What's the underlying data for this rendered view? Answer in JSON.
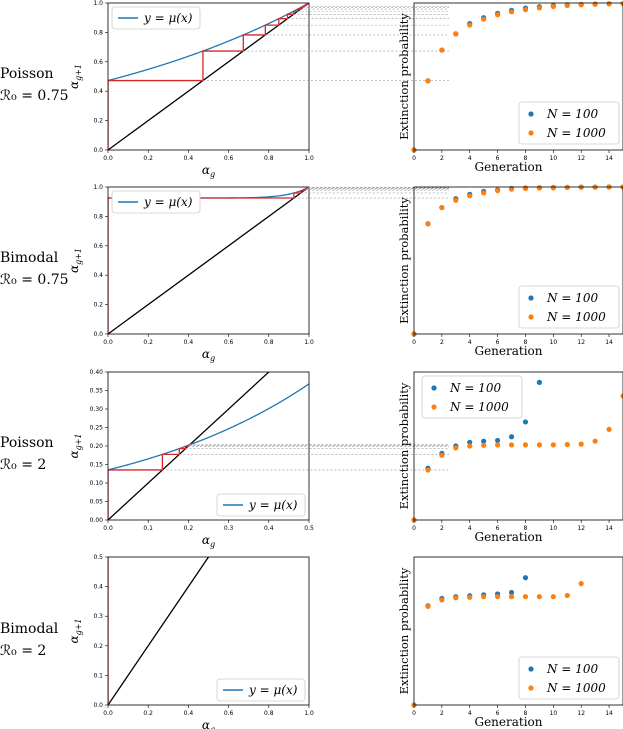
{
  "rows": [
    {
      "label1": "Poisson",
      "label2": "ℛ₀ = 0.75",
      "cobweb": {
        "xlabel": "α_g",
        "ylabel": "α_{g+1}",
        "xlim": [
          0,
          1
        ],
        "ylim": [
          0,
          1
        ],
        "xticks": [
          "0.0",
          "0.2",
          "0.4",
          "0.6",
          "0.8",
          "1.0"
        ],
        "yticks": [
          "0.0",
          "0.2",
          "0.4",
          "0.6",
          "0.8",
          "1.0"
        ],
        "legend": "y = μ(x)",
        "legend_pos": "top-left",
        "map": "poisson",
        "R0": 0.75
      },
      "ext": {
        "xlabel": "Generation",
        "ylabel": "Extinction probability",
        "xlim": [
          0,
          15
        ],
        "ylim": [
          0,
          1
        ],
        "xticks": [
          "0",
          "2",
          "4",
          "6",
          "8",
          "10",
          "12",
          "14"
        ],
        "legend_pos": "bottom-right",
        "series": [
          {
            "name": "N = 100",
            "color": "#1f77b4",
            "x": [
              0,
              1,
              2,
              3,
              4,
              5,
              6,
              7,
              8,
              9,
              10,
              11,
              12,
              13,
              14,
              15
            ],
            "y": [
              0,
              0.47,
              0.68,
              0.79,
              0.86,
              0.9,
              0.93,
              0.95,
              0.965,
              0.975,
              0.982,
              0.987,
              0.99,
              0.993,
              0.995,
              0.996
            ]
          },
          {
            "name": "N = 1000",
            "color": "#ff7f0e",
            "x": [
              0,
              1,
              2,
              3,
              4,
              5,
              6,
              7,
              8,
              9,
              10,
              11,
              12,
              13,
              14,
              15
            ],
            "y": [
              0,
              0.47,
              0.68,
              0.79,
              0.85,
              0.89,
              0.92,
              0.94,
              0.955,
              0.967,
              0.976,
              0.983,
              0.988,
              0.991,
              0.994,
              0.996
            ]
          }
        ]
      }
    },
    {
      "label1": "Bimodal",
      "label2": "ℛ₀ = 0.75",
      "cobweb": {
        "xlabel": "α_g",
        "ylabel": "α_{g+1}",
        "xlim": [
          0,
          1
        ],
        "ylim": [
          0,
          1
        ],
        "xticks": [
          "0.0",
          "0.2",
          "0.4",
          "0.6",
          "0.8",
          "1.0"
        ],
        "yticks": [
          "0.0",
          "0.2",
          "0.4",
          "0.6",
          "0.8",
          "1.0"
        ],
        "legend": "y = μ(x)",
        "legend_pos": "top-left",
        "map": "bimodal",
        "R0": 0.75
      },
      "ext": {
        "xlabel": "Generation",
        "ylabel": "Extinction probability",
        "xlim": [
          0,
          15
        ],
        "ylim": [
          0,
          1
        ],
        "xticks": [
          "0",
          "2",
          "4",
          "6",
          "8",
          "10",
          "12",
          "14"
        ],
        "legend_pos": "bottom-right",
        "series": [
          {
            "name": "N = 100",
            "color": "#1f77b4",
            "x": [
              0,
              1,
              2,
              3,
              4,
              5,
              6,
              7,
              8,
              9,
              10,
              11,
              12,
              13,
              14,
              15
            ],
            "y": [
              0,
              0.75,
              0.86,
              0.92,
              0.95,
              0.97,
              0.98,
              0.99,
              0.993,
              0.995,
              0.997,
              0.998,
              0.999,
              0.999,
              1.0,
              1.0
            ]
          },
          {
            "name": "N = 1000",
            "color": "#ff7f0e",
            "x": [
              0,
              1,
              2,
              3,
              4,
              5,
              6,
              7,
              8,
              9,
              10,
              11,
              12,
              13,
              14,
              15
            ],
            "y": [
              0,
              0.75,
              0.86,
              0.91,
              0.94,
              0.96,
              0.975,
              0.985,
              0.99,
              0.993,
              0.995,
              0.997,
              0.998,
              0.999,
              1.0,
              1.0
            ]
          }
        ]
      }
    },
    {
      "label1": "Poisson",
      "label2": "ℛ₀ = 2",
      "cobweb": {
        "xlabel": "α_g",
        "ylabel": "α_{g+1}",
        "xlim": [
          0,
          0.5
        ],
        "ylim": [
          0,
          0.4
        ],
        "xticks": [
          "0.0",
          "0.1",
          "0.2",
          "0.3",
          "0.4",
          "0.5"
        ],
        "yticks": [
          "0.00",
          "0.05",
          "0.10",
          "0.15",
          "0.20",
          "0.25",
          "0.30",
          "0.35",
          "0.40"
        ],
        "legend": "y = μ(x)",
        "legend_pos": "bottom-right",
        "map": "poisson",
        "R0": 2
      },
      "ext": {
        "xlabel": "Generation",
        "ylabel": "Extinction probability",
        "xlim": [
          0,
          15
        ],
        "ylim": [
          0,
          0.4
        ],
        "xticks": [
          "0",
          "2",
          "4",
          "6",
          "8",
          "10",
          "12",
          "14"
        ],
        "legend_pos": "top-left",
        "series": [
          {
            "name": "N = 100",
            "color": "#1f77b4",
            "x": [
              0,
              1,
              2,
              3,
              4,
              5,
              6,
              7,
              8,
              9
            ],
            "y": [
              0,
              0.14,
              0.18,
              0.2,
              0.21,
              0.213,
              0.215,
              0.225,
              0.265,
              0.372
            ]
          },
          {
            "name": "N = 1000",
            "color": "#ff7f0e",
            "x": [
              0,
              1,
              2,
              3,
              4,
              5,
              6,
              7,
              8,
              9,
              10,
              11,
              12,
              13,
              14,
              15
            ],
            "y": [
              0,
              0.135,
              0.175,
              0.195,
              0.2,
              0.202,
              0.203,
              0.203,
              0.203,
              0.203,
              0.203,
              0.204,
              0.205,
              0.213,
              0.245,
              0.335
            ]
          }
        ]
      }
    },
    {
      "label1": "Bimodal",
      "label2": "ℛ₀ = 2",
      "cobweb": {
        "xlabel": "α_g",
        "ylabel": "α_{g+1}",
        "xlim": [
          0,
          1
        ],
        "ylim": [
          0,
          0.5
        ],
        "xticks": [
          "0.0",
          "0.2",
          "0.4",
          "0.6",
          "0.8",
          "1.0"
        ],
        "yticks": [
          "0.0",
          "0.1",
          "0.2",
          "0.3",
          "0.4",
          "0.5"
        ],
        "legend": "y = μ(x)",
        "legend_pos": "bottom-right",
        "map": "bimodal",
        "R0": 2
      },
      "ext": {
        "xlabel": "Generation",
        "ylabel": "Extinction probability",
        "xlim": [
          0,
          15
        ],
        "ylim": [
          0,
          0.5
        ],
        "xticks": [
          "0",
          "2",
          "4",
          "6",
          "8",
          "10",
          "12",
          "14"
        ],
        "legend_pos": "bottom-right",
        "series": [
          {
            "name": "N = 100",
            "color": "#1f77b4",
            "x": [
              0,
              1,
              2,
              3,
              4,
              5,
              6,
              7,
              8
            ],
            "y": [
              0,
              0.335,
              0.36,
              0.366,
              0.369,
              0.372,
              0.375,
              0.38,
              0.43
            ]
          },
          {
            "name": "N = 1000",
            "color": "#ff7f0e",
            "x": [
              0,
              1,
              2,
              3,
              4,
              5,
              6,
              7,
              8,
              9,
              10,
              11,
              12
            ],
            "y": [
              0,
              0.333,
              0.355,
              0.362,
              0.364,
              0.366,
              0.366,
              0.366,
              0.366,
              0.366,
              0.366,
              0.37,
              0.41
            ]
          }
        ]
      }
    }
  ]
}
